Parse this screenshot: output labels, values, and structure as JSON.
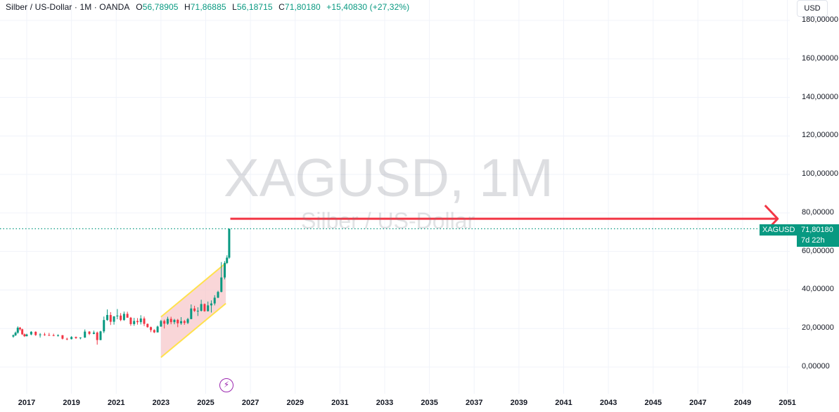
{
  "legend": {
    "title": "Silber / US-Dollar · 1M · OANDA",
    "open_label": "O",
    "open": "56,78905",
    "high_label": "H",
    "high": "71,86885",
    "low_label": "L",
    "low": "56,18715",
    "close_label": "C",
    "close": "71,80180",
    "change": "+15,40830 (+27,32%)"
  },
  "currency_button": "USD",
  "watermark": {
    "symbol": "XAGUSD, 1M",
    "name": "Silber / US-Dollar"
  },
  "price_tag": {
    "symbol": "XAGUSD",
    "price": "71,80180",
    "countdown": "7d 22h"
  },
  "colors": {
    "up": "#089981",
    "down": "#f23645",
    "arrow": "#f23645",
    "channel_fill": "#f7c5c8",
    "channel_line": "#ffe14d"
  },
  "icons": {
    "flash": "lightning-icon"
  },
  "chart_data": {
    "type": "candlestick",
    "y_axis": {
      "range": [
        -4,
        182
      ],
      "ticks": [
        "0,00000",
        "20,00000",
        "40,00000",
        "60,00000",
        "80,00000",
        "100,00000",
        "120,00000",
        "140,00000",
        "160,00000",
        "180,00000"
      ]
    },
    "x_axis": {
      "range": [
        2016.4,
        2051.3
      ],
      "ticks": [
        "2017",
        "2019",
        "2021",
        "2023",
        "2025",
        "2027",
        "2029",
        "2031",
        "2033",
        "2035",
        "2037",
        "2039",
        "2041",
        "2043",
        "2045",
        "2047",
        "2049",
        "2051"
      ]
    },
    "last_price": 71.8018,
    "candles": [
      {
        "t": 2016.4,
        "o": 15.8,
        "h": 16.9,
        "l": 15.2,
        "c": 16.5
      },
      {
        "t": 2016.5,
        "o": 16.5,
        "h": 18.4,
        "l": 16.1,
        "c": 17.8
      },
      {
        "t": 2016.6,
        "o": 17.8,
        "h": 21.1,
        "l": 17.3,
        "c": 20.4
      },
      {
        "t": 2016.7,
        "o": 20.4,
        "h": 20.8,
        "l": 18.9,
        "c": 19.6
      },
      {
        "t": 2016.8,
        "o": 19.6,
        "h": 19.9,
        "l": 16.6,
        "c": 17.0
      },
      {
        "t": 2016.9,
        "o": 17.0,
        "h": 17.4,
        "l": 15.6,
        "c": 16.0
      },
      {
        "t": 2017.0,
        "o": 16.0,
        "h": 17.3,
        "l": 15.9,
        "c": 16.9
      },
      {
        "t": 2017.2,
        "o": 16.9,
        "h": 18.6,
        "l": 16.5,
        "c": 18.3
      },
      {
        "t": 2017.4,
        "o": 18.3,
        "h": 18.5,
        "l": 16.2,
        "c": 16.6
      },
      {
        "t": 2017.6,
        "o": 16.6,
        "h": 17.6,
        "l": 15.3,
        "c": 16.9
      },
      {
        "t": 2017.8,
        "o": 16.9,
        "h": 17.8,
        "l": 16.2,
        "c": 16.6
      },
      {
        "t": 2018.0,
        "o": 16.6,
        "h": 17.7,
        "l": 16.2,
        "c": 16.5
      },
      {
        "t": 2018.2,
        "o": 16.5,
        "h": 17.3,
        "l": 16.0,
        "c": 16.4
      },
      {
        "t": 2018.4,
        "o": 16.4,
        "h": 17.0,
        "l": 15.8,
        "c": 16.5
      },
      {
        "t": 2018.6,
        "o": 16.5,
        "h": 16.6,
        "l": 14.3,
        "c": 14.7
      },
      {
        "t": 2018.8,
        "o": 14.7,
        "h": 15.2,
        "l": 13.9,
        "c": 14.5
      },
      {
        "t": 2019.0,
        "o": 14.5,
        "h": 16.0,
        "l": 14.3,
        "c": 15.6
      },
      {
        "t": 2019.2,
        "o": 15.6,
        "h": 15.8,
        "l": 14.6,
        "c": 15.0
      },
      {
        "t": 2019.4,
        "o": 15.0,
        "h": 15.4,
        "l": 14.4,
        "c": 15.3
      },
      {
        "t": 2019.6,
        "o": 15.3,
        "h": 19.5,
        "l": 15.1,
        "c": 18.4
      },
      {
        "t": 2019.8,
        "o": 18.4,
        "h": 18.6,
        "l": 16.6,
        "c": 17.2
      },
      {
        "t": 2020.0,
        "o": 17.2,
        "h": 18.9,
        "l": 17.0,
        "c": 17.9
      },
      {
        "t": 2020.15,
        "o": 17.9,
        "h": 18.4,
        "l": 11.6,
        "c": 14.0
      },
      {
        "t": 2020.3,
        "o": 14.0,
        "h": 18.8,
        "l": 13.9,
        "c": 18.5
      },
      {
        "t": 2020.45,
        "o": 18.5,
        "h": 26.2,
        "l": 17.6,
        "c": 24.4
      },
      {
        "t": 2020.6,
        "o": 24.4,
        "h": 29.9,
        "l": 24.0,
        "c": 27.0
      },
      {
        "t": 2020.75,
        "o": 27.0,
        "h": 28.5,
        "l": 21.8,
        "c": 23.5
      },
      {
        "t": 2020.9,
        "o": 23.5,
        "h": 26.4,
        "l": 22.0,
        "c": 26.3
      },
      {
        "t": 2021.05,
        "o": 26.3,
        "h": 30.1,
        "l": 24.8,
        "c": 26.7
      },
      {
        "t": 2021.2,
        "o": 26.7,
        "h": 28.0,
        "l": 23.8,
        "c": 24.4
      },
      {
        "t": 2021.35,
        "o": 24.4,
        "h": 28.8,
        "l": 24.0,
        "c": 27.6
      },
      {
        "t": 2021.5,
        "o": 27.6,
        "h": 28.7,
        "l": 25.6,
        "c": 25.6
      },
      {
        "t": 2021.65,
        "o": 25.6,
        "h": 26.0,
        "l": 21.4,
        "c": 22.3
      },
      {
        "t": 2021.8,
        "o": 22.3,
        "h": 25.5,
        "l": 21.4,
        "c": 23.9
      },
      {
        "t": 2021.95,
        "o": 23.9,
        "h": 25.4,
        "l": 22.0,
        "c": 23.3
      },
      {
        "t": 2022.1,
        "o": 23.3,
        "h": 26.9,
        "l": 22.1,
        "c": 25.2
      },
      {
        "t": 2022.25,
        "o": 25.2,
        "h": 26.2,
        "l": 21.3,
        "c": 22.4
      },
      {
        "t": 2022.4,
        "o": 22.4,
        "h": 22.6,
        "l": 20.4,
        "c": 20.7
      },
      {
        "t": 2022.55,
        "o": 20.7,
        "h": 21.0,
        "l": 18.1,
        "c": 19.2
      },
      {
        "t": 2022.7,
        "o": 19.2,
        "h": 19.6,
        "l": 17.6,
        "c": 18.0
      },
      {
        "t": 2022.85,
        "o": 18.0,
        "h": 21.5,
        "l": 17.9,
        "c": 21.0
      },
      {
        "t": 2023.0,
        "o": 21.0,
        "h": 24.5,
        "l": 20.9,
        "c": 23.9
      },
      {
        "t": 2023.15,
        "o": 23.9,
        "h": 24.6,
        "l": 20.0,
        "c": 22.5
      },
      {
        "t": 2023.3,
        "o": 22.5,
        "h": 26.1,
        "l": 21.9,
        "c": 25.0
      },
      {
        "t": 2023.45,
        "o": 25.0,
        "h": 26.1,
        "l": 22.2,
        "c": 23.3
      },
      {
        "t": 2023.6,
        "o": 23.3,
        "h": 25.0,
        "l": 22.2,
        "c": 24.5
      },
      {
        "t": 2023.75,
        "o": 24.5,
        "h": 25.0,
        "l": 20.7,
        "c": 22.7
      },
      {
        "t": 2023.9,
        "o": 22.7,
        "h": 25.9,
        "l": 21.9,
        "c": 23.8
      },
      {
        "t": 2024.05,
        "o": 23.8,
        "h": 24.5,
        "l": 21.9,
        "c": 22.9
      },
      {
        "t": 2024.2,
        "o": 22.9,
        "h": 25.5,
        "l": 22.3,
        "c": 24.9
      },
      {
        "t": 2024.35,
        "o": 24.9,
        "h": 32.5,
        "l": 24.8,
        "c": 30.4
      },
      {
        "t": 2024.5,
        "o": 30.4,
        "h": 31.8,
        "l": 28.6,
        "c": 29.1
      },
      {
        "t": 2024.65,
        "o": 29.1,
        "h": 31.0,
        "l": 26.5,
        "c": 29.2
      },
      {
        "t": 2024.8,
        "o": 29.2,
        "h": 34.9,
        "l": 28.8,
        "c": 32.7
      },
      {
        "t": 2024.95,
        "o": 32.7,
        "h": 33.0,
        "l": 28.7,
        "c": 29.0
      },
      {
        "t": 2025.1,
        "o": 29.0,
        "h": 34.0,
        "l": 28.8,
        "c": 32.0
      },
      {
        "t": 2025.25,
        "o": 32.0,
        "h": 34.6,
        "l": 28.3,
        "c": 33.0
      },
      {
        "t": 2025.4,
        "o": 33.0,
        "h": 37.3,
        "l": 32.0,
        "c": 36.0
      },
      {
        "t": 2025.55,
        "o": 36.0,
        "h": 39.6,
        "l": 35.8,
        "c": 39.0
      },
      {
        "t": 2025.7,
        "o": 39.0,
        "h": 54.5,
        "l": 38.8,
        "c": 46.5
      },
      {
        "t": 2025.85,
        "o": 46.5,
        "h": 55.0,
        "l": 45.5,
        "c": 54.0
      },
      {
        "t": 2025.95,
        "o": 54.0,
        "h": 58.0,
        "l": 53.5,
        "c": 56.8
      },
      {
        "t": 2026.05,
        "o": 56.79,
        "h": 71.87,
        "l": 56.19,
        "c": 71.8
      }
    ],
    "channel": {
      "upper": [
        [
          2023.0,
          26.0
        ],
        [
          2025.9,
          54.0
        ]
      ],
      "lower": [
        [
          2023.0,
          5.0
        ],
        [
          2025.9,
          33.0
        ]
      ]
    },
    "arrow": {
      "from": [
        2026.1,
        77.0
      ],
      "to": [
        2050.0,
        77.0
      ]
    }
  }
}
